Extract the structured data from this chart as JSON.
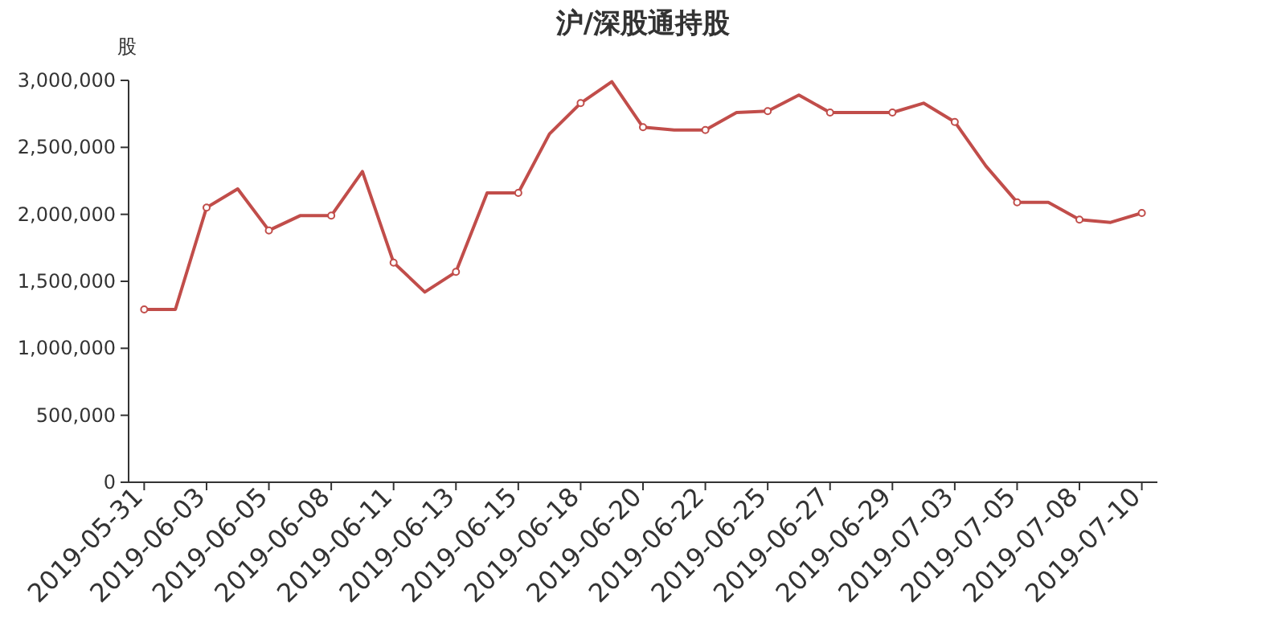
{
  "chart_data": {
    "type": "line",
    "title": "沪/深股通持股",
    "ylabel": "股",
    "categories": [
      "2019-05-31",
      null,
      "2019-06-03",
      null,
      "2019-06-05",
      null,
      "2019-06-08",
      null,
      "2019-06-11",
      null,
      "2019-06-13",
      null,
      "2019-06-15",
      null,
      "2019-06-18",
      null,
      "2019-06-20",
      null,
      "2019-06-22",
      null,
      "2019-06-25",
      null,
      "2019-06-27",
      null,
      "2019-06-29",
      null,
      "2019-07-03",
      null,
      "2019-07-05",
      null,
      "2019-07-08",
      null,
      "2019-07-10"
    ],
    "series": [
      {
        "color": "#c14d4a",
        "values": [
          1290000,
          1290000,
          2050000,
          2190000,
          1880000,
          1990000,
          1990000,
          2320000,
          1640000,
          1420000,
          1570000,
          2160000,
          2160000,
          2600000,
          2830000,
          2990000,
          2650000,
          2630000,
          2630000,
          2760000,
          2770000,
          2890000,
          2760000,
          2760000,
          2760000,
          2830000,
          2690000,
          2360000,
          2090000,
          2090000,
          1960000,
          1940000,
          2010000
        ]
      }
    ],
    "ylim": [
      0,
      3000000
    ],
    "yticks": [
      {
        "value": 0,
        "label": "0"
      },
      {
        "value": 500000,
        "label": "500,000"
      },
      {
        "value": 1000000,
        "label": "1,000,000"
      },
      {
        "value": 1500000,
        "label": "1,500,000"
      },
      {
        "value": 2000000,
        "label": "2,000,000"
      },
      {
        "value": 2500000,
        "label": "2,500,000"
      },
      {
        "value": 3000000,
        "label": "3,000,000"
      }
    ],
    "grid": false,
    "marker": "circle",
    "line_style": "solid"
  }
}
